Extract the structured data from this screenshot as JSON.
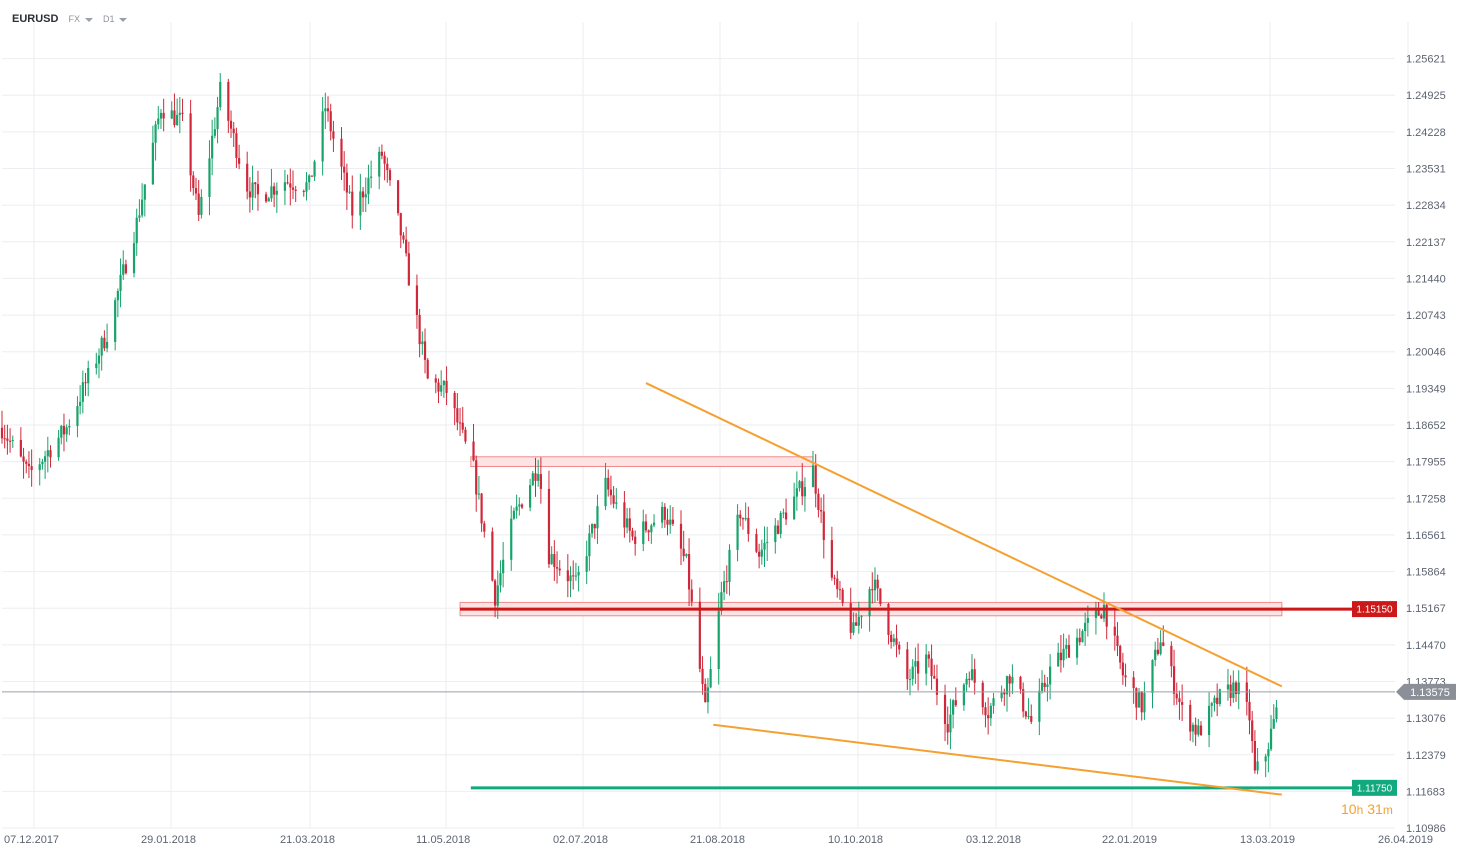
{
  "toolbar": {
    "symbol": "EURUSD",
    "market": "FX",
    "timeframe": "D1"
  },
  "countdown": {
    "hours": "10",
    "h_unit": "h",
    "minutes": "31",
    "m_unit": "m"
  },
  "colors": {
    "up": "#17a36b",
    "down": "#d0283a",
    "resistance": "#cc1818",
    "support": "#13a97e",
    "trendline": "#f5a030",
    "zone_fill": "#fde3e3",
    "zone_border": "#f08a8a",
    "grid": "#eceef1",
    "axis_text": "#5d6470",
    "current_price_bg": "#8a8f98"
  },
  "chart_data": {
    "type": "candlestick",
    "symbol": "EURUSD",
    "timeframe": "D1",
    "x_tick_labels": [
      "07.12.2017",
      "29.01.2018",
      "21.03.2018",
      "11.05.2018",
      "02.07.2018",
      "21.08.2018",
      "10.10.2018",
      "03.12.2018",
      "22.01.2019",
      "13.03.2019",
      "26.04.2019"
    ],
    "y_tick_labels": [
      "1.25621",
      "1.24925",
      "1.24228",
      "1.23531",
      "1.22834",
      "1.22137",
      "1.21440",
      "1.20743",
      "1.20046",
      "1.19349",
      "1.18652",
      "1.17955",
      "1.17258",
      "1.16561",
      "1.15864",
      "1.15167",
      "1.14470",
      "1.13773",
      "1.13076",
      "1.12379",
      "1.11683",
      "1.10986"
    ],
    "ylim": [
      1.10986,
      1.26318
    ],
    "date_range": [
      "2017-11-27",
      "2019-04-28"
    ],
    "current_price": "1.13575",
    "levels": [
      {
        "name": "resistance",
        "value": "1.15150",
        "color": "#cc1818"
      },
      {
        "name": "support",
        "value": "1.11750",
        "color": "#13a97e"
      }
    ],
    "zones": [
      {
        "name": "upper-range-zone",
        "from": "2018-05-20",
        "to": "2018-09-24",
        "low": 1.1792,
        "high": 1.1799
      },
      {
        "name": "lower-range-zone",
        "from": "2018-05-16",
        "to": "2019-03-17",
        "low": 1.1508,
        "high": 1.1522
      }
    ],
    "trendlines": [
      {
        "name": "descending-resistance-line",
        "from": {
          "date": "2018-07-24",
          "price": 1.1945
        },
        "to": {
          "date": "2019-03-17",
          "price": 1.1368
        }
      },
      {
        "name": "descending-support-line",
        "from": {
          "date": "2018-08-18",
          "price": 1.1295
        },
        "to": {
          "date": "2019-03-17",
          "price": 1.1162
        }
      }
    ],
    "anchors": [
      {
        "date": "2017-11-27",
        "price": 1.186
      },
      {
        "date": "2017-12-07",
        "price": 1.177
      },
      {
        "date": "2017-12-21",
        "price": 1.186
      },
      {
        "date": "2018-01-05",
        "price": 1.204
      },
      {
        "date": "2018-01-16",
        "price": 1.225
      },
      {
        "date": "2018-01-25",
        "price": 1.247
      },
      {
        "date": "2018-02-02",
        "price": 1.244
      },
      {
        "date": "2018-02-08",
        "price": 1.226
      },
      {
        "date": "2018-02-16",
        "price": 1.25
      },
      {
        "date": "2018-02-26",
        "price": 1.232
      },
      {
        "date": "2018-03-02",
        "price": 1.23
      },
      {
        "date": "2018-03-12",
        "price": 1.233
      },
      {
        "date": "2018-03-21",
        "price": 1.232
      },
      {
        "date": "2018-03-27",
        "price": 1.247
      },
      {
        "date": "2018-04-06",
        "price": 1.227
      },
      {
        "date": "2018-04-17",
        "price": 1.238
      },
      {
        "date": "2018-04-24",
        "price": 1.223
      },
      {
        "date": "2018-05-04",
        "price": 1.195
      },
      {
        "date": "2018-05-11",
        "price": 1.193
      },
      {
        "date": "2018-05-21",
        "price": 1.178
      },
      {
        "date": "2018-05-29",
        "price": 1.154
      },
      {
        "date": "2018-06-05",
        "price": 1.169
      },
      {
        "date": "2018-06-14",
        "price": 1.179
      },
      {
        "date": "2018-06-18",
        "price": 1.162
      },
      {
        "date": "2018-06-28",
        "price": 1.156
      },
      {
        "date": "2018-07-09",
        "price": 1.175
      },
      {
        "date": "2018-07-19",
        "price": 1.165
      },
      {
        "date": "2018-07-31",
        "price": 1.17
      },
      {
        "date": "2018-08-08",
        "price": 1.16
      },
      {
        "date": "2018-08-15",
        "price": 1.132
      },
      {
        "date": "2018-08-21",
        "price": 1.154
      },
      {
        "date": "2018-08-28",
        "price": 1.17
      },
      {
        "date": "2018-09-04",
        "price": 1.162
      },
      {
        "date": "2018-09-14",
        "price": 1.17
      },
      {
        "date": "2018-09-24",
        "price": 1.178
      },
      {
        "date": "2018-10-01",
        "price": 1.157
      },
      {
        "date": "2018-10-09",
        "price": 1.147
      },
      {
        "date": "2018-10-16",
        "price": 1.157
      },
      {
        "date": "2018-10-29",
        "price": 1.138
      },
      {
        "date": "2018-11-05",
        "price": 1.142
      },
      {
        "date": "2018-11-13",
        "price": 1.13
      },
      {
        "date": "2018-11-21",
        "price": 1.14
      },
      {
        "date": "2018-11-28",
        "price": 1.132
      },
      {
        "date": "2018-12-06",
        "price": 1.139
      },
      {
        "date": "2018-12-14",
        "price": 1.13
      },
      {
        "date": "2018-12-21",
        "price": 1.14
      },
      {
        "date": "2018-12-31",
        "price": 1.146
      },
      {
        "date": "2019-01-10",
        "price": 1.152
      },
      {
        "date": "2019-01-17",
        "price": 1.139
      },
      {
        "date": "2019-01-24",
        "price": 1.133
      },
      {
        "date": "2019-01-31",
        "price": 1.146
      },
      {
        "date": "2019-02-08",
        "price": 1.132
      },
      {
        "date": "2019-02-14",
        "price": 1.128
      },
      {
        "date": "2019-02-21",
        "price": 1.134
      },
      {
        "date": "2019-02-28",
        "price": 1.137
      },
      {
        "date": "2019-03-05",
        "price": 1.131
      },
      {
        "date": "2019-03-07",
        "price": 1.12
      },
      {
        "date": "2019-03-11",
        "price": 1.124
      },
      {
        "date": "2019-03-17",
        "price": 1.1358
      }
    ]
  }
}
